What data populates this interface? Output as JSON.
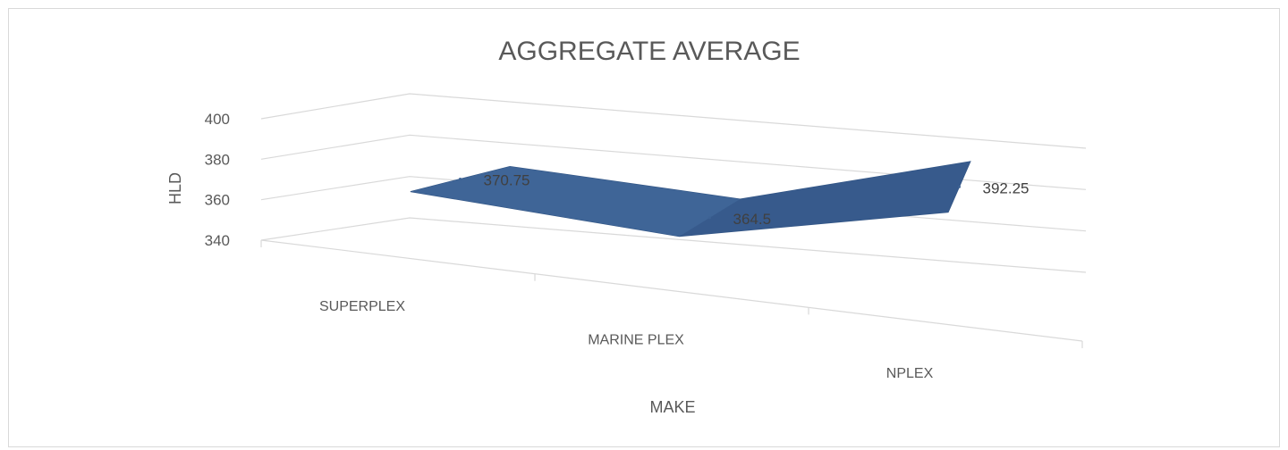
{
  "chart_data": {
    "type": "line",
    "title": "AGGREGATE AVERAGE",
    "xlabel": "MAKE",
    "ylabel": "HLD",
    "categories": [
      "SUPERPLEX",
      "MARINE PLEX",
      "NPLEX"
    ],
    "series": [
      {
        "values": [
          370.75,
          364.5,
          392.25
        ],
        "color": "#3d6294"
      }
    ],
    "data_labels": [
      "370.75",
      "364.5",
      "392.25"
    ],
    "yticks": [
      340,
      360,
      380,
      400
    ],
    "ylim": [
      340,
      400
    ],
    "grid": true,
    "legend": "none",
    "style": "3d"
  }
}
